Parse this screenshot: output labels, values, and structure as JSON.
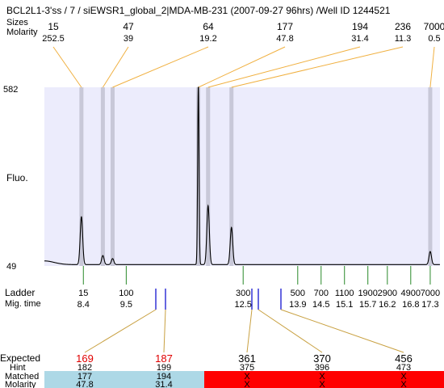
{
  "chart_data": {
    "type": "line",
    "title": "BCL2L1-3'ss / 7 / siEWSR1_global_2|MDA-MB-231 (2007-09-27 96hrs) /Well ID 1244521",
    "ylabel": "Fluo.",
    "ylim": [
      49,
      582
    ],
    "y_tick_labels": [
      "582",
      "49"
    ],
    "row_labels": {
      "sizes": "Sizes",
      "molarity": "Molarity",
      "ladder": "Ladder",
      "mig_time": "Mig. time",
      "expected": "Expected",
      "hint": "Hint",
      "matched": "Matched",
      "molarity_bottom": "Molarity"
    },
    "peaks": [
      {
        "size": "15",
        "molarity": "252.5",
        "time": 8.35,
        "height": 192
      },
      {
        "size": "47",
        "molarity": "39",
        "time": 8.9,
        "height": 76
      },
      {
        "size": "64",
        "molarity": "19.2",
        "time": 9.15,
        "height": 67
      },
      {
        "size": "177",
        "molarity": "47.8",
        "time": 11.35,
        "height": 582
      },
      {
        "size": "194",
        "molarity": "31.4",
        "time": 11.6,
        "height": 225
      },
      {
        "size": "236",
        "molarity": "11.3",
        "time": 12.2,
        "height": 160
      },
      {
        "size": "7000",
        "molarity": "0.5",
        "time": 17.3,
        "height": 88
      }
    ],
    "ladder": [
      {
        "size": "15",
        "time": "8.4",
        "t": 8.4
      },
      {
        "size": "100",
        "time": "9.5",
        "t": 9.5
      },
      {
        "size": "300",
        "time": "12.5",
        "t": 12.5
      },
      {
        "size": "500",
        "time": "13.9",
        "t": 13.9
      },
      {
        "size": "700",
        "time": "14.5",
        "t": 14.5
      },
      {
        "size": "1100",
        "time": "15.1",
        "t": 15.1
      },
      {
        "size": "1900",
        "time": "15.7",
        "t": 15.7
      },
      {
        "size": "2900",
        "time": "16.2",
        "t": 16.2
      },
      {
        "size": "4900",
        "time": "16.8",
        "t": 16.8
      },
      {
        "size": "7000",
        "time": "17.3",
        "t": 17.3
      }
    ],
    "expected": [
      {
        "size": "169",
        "hint": "182",
        "matched": "177",
        "molarity": "47.8",
        "status": "matched",
        "time": 11.35
      },
      {
        "size": "187",
        "hint": "199",
        "matched": "194",
        "molarity": "31.4",
        "status": "matched",
        "time": 11.6
      },
      {
        "size": "361",
        "hint": "375",
        "matched": "X",
        "molarity": "X",
        "status": "unmatched",
        "time": 13.5
      },
      {
        "size": "370",
        "hint": "396",
        "matched": "X",
        "molarity": "X",
        "status": "unmatched",
        "time": 13.65
      },
      {
        "size": "456",
        "hint": "473",
        "matched": "X",
        "molarity": "X",
        "status": "unmatched",
        "time": 13.85
      }
    ],
    "colors": {
      "plot_bg": "#ececfc",
      "peak_band": "#c8c8d8",
      "peak_link": "#f0b040",
      "ladder_tick": "#2a8a2a",
      "expected_marker": "#0000cc",
      "expected_link": "#c8a040",
      "expected_text": "#e00000",
      "matched_bg": "#add8e6",
      "unmatched_bg": "#ff0000",
      "trace": "#000000"
    }
  }
}
